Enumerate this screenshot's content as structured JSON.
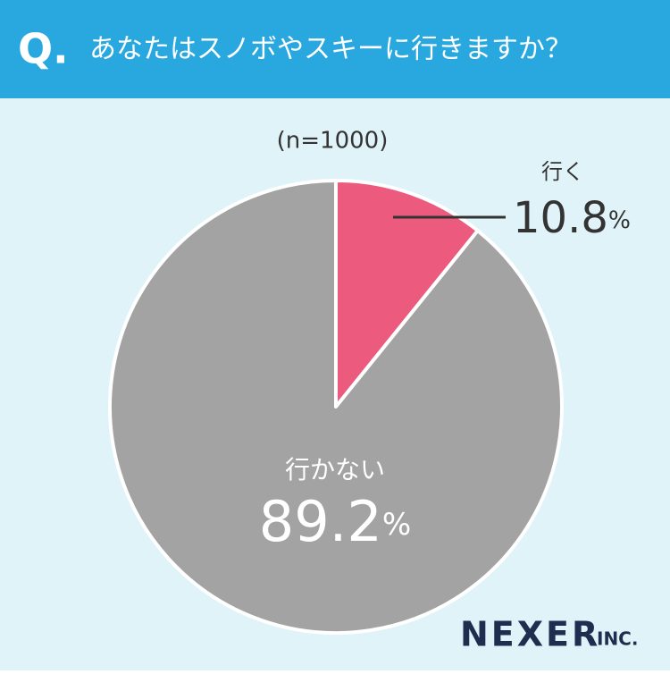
{
  "chart_data": {
    "type": "pie",
    "question_mark": "Q.",
    "title": "あなたはスノボやスキーに行きますか？",
    "subtitle": "(n=1000)",
    "categories": [
      "行く",
      "行かない"
    ],
    "values": [
      10.8,
      89.2
    ],
    "value_labels": [
      "10.8%",
      "89.2%"
    ],
    "colors": [
      "#ec5a7e",
      "#a3a3a3"
    ],
    "logo": "NEXER",
    "logo_suffix": "INC."
  }
}
